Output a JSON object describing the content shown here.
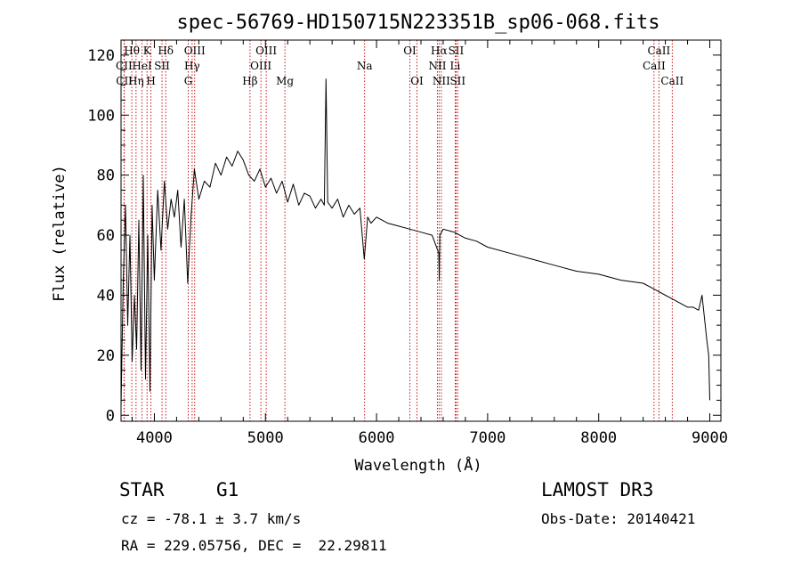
{
  "chart_data": {
    "type": "line",
    "title": "spec-56769-HD150715N223351B_sp06-068.fits",
    "xlabel": "Wavelength (Å)",
    "ylabel": "Flux (relative)",
    "xlim": [
      3700,
      9100
    ],
    "ylim": [
      -2,
      125
    ],
    "xticks": [
      4000,
      5000,
      6000,
      7000,
      8000,
      9000
    ],
    "xtick_labels": [
      "4000",
      "5000",
      "6000",
      "7000",
      "8000",
      "9000"
    ],
    "yticks": [
      0,
      20,
      40,
      60,
      80,
      100,
      120
    ],
    "ytick_labels": [
      "0",
      "20",
      "40",
      "60",
      "80",
      "100",
      "120"
    ],
    "series": [
      {
        "name": "flux",
        "x": [
          3700,
          3720,
          3740,
          3760,
          3780,
          3800,
          3820,
          3840,
          3860,
          3880,
          3900,
          3920,
          3940,
          3960,
          3980,
          4000,
          4030,
          4060,
          4090,
          4120,
          4150,
          4180,
          4210,
          4240,
          4270,
          4300,
          4330,
          4360,
          4400,
          4450,
          4500,
          4550,
          4600,
          4650,
          4700,
          4750,
          4800,
          4850,
          4900,
          4950,
          5000,
          5050,
          5100,
          5150,
          5200,
          5250,
          5300,
          5350,
          5400,
          5450,
          5500,
          5530,
          5545,
          5560,
          5600,
          5650,
          5700,
          5750,
          5800,
          5850,
          5890,
          5920,
          5950,
          6000,
          6100,
          6200,
          6300,
          6400,
          6500,
          6560,
          6565,
          6570,
          6600,
          6700,
          6800,
          6900,
          7000,
          7200,
          7400,
          7600,
          7800,
          8000,
          8200,
          8400,
          8500,
          8550,
          8600,
          8650,
          8700,
          8750,
          8800,
          8850,
          8900,
          8930,
          8950,
          8970,
          8990,
          9000
        ],
        "y": [
          3,
          45,
          70,
          30,
          60,
          18,
          40,
          22,
          65,
          15,
          80,
          12,
          60,
          8,
          70,
          45,
          75,
          55,
          78,
          62,
          72,
          66,
          75,
          56,
          72,
          44,
          66,
          82,
          72,
          78,
          76,
          84,
          80,
          86,
          83,
          88,
          85,
          80,
          78,
          82,
          76,
          79,
          74,
          78,
          71,
          77,
          70,
          74,
          73,
          69,
          72,
          70,
          112,
          71,
          69,
          72,
          66,
          70,
          67,
          69,
          52,
          66,
          64,
          66,
          64,
          63,
          62,
          61,
          60,
          54,
          45,
          60,
          62,
          61,
          59,
          58,
          56,
          54,
          52,
          50,
          48,
          47,
          45,
          44,
          42,
          41,
          40,
          39,
          38,
          37,
          36,
          36,
          35,
          40,
          33,
          26,
          20,
          5
        ]
      }
    ],
    "annotations": [
      {
        "label": "CII",
        "wavelength": 3727,
        "row": 1
      },
      {
        "label": "CII",
        "wavelength": 3729,
        "row": 2
      },
      {
        "label": "Hθ",
        "wavelength": 3797,
        "row": 0
      },
      {
        "label": "Hη",
        "wavelength": 3835,
        "row": 2
      },
      {
        "label": "HeI",
        "wavelength": 3889,
        "row": 1
      },
      {
        "label": "K",
        "wavelength": 3934,
        "row": 0
      },
      {
        "label": "H",
        "wavelength": 3969,
        "row": 2
      },
      {
        "label": "SII",
        "wavelength": 4069,
        "row": 1
      },
      {
        "label": "Hδ",
        "wavelength": 4102,
        "row": 0
      },
      {
        "label": "Hγ",
        "wavelength": 4340,
        "row": 1
      },
      {
        "label": "G",
        "wavelength": 4305,
        "row": 2
      },
      {
        "label": "OIII",
        "wavelength": 4363,
        "row": 0
      },
      {
        "label": "Hβ",
        "wavelength": 4861,
        "row": 2
      },
      {
        "label": "OIII",
        "wavelength": 4959,
        "row": 1
      },
      {
        "label": "OIII",
        "wavelength": 5007,
        "row": 0
      },
      {
        "label": "Mg",
        "wavelength": 5175,
        "row": 2
      },
      {
        "label": "Na",
        "wavelength": 5893,
        "row": 1
      },
      {
        "label": "OI",
        "wavelength": 6300,
        "row": 0
      },
      {
        "label": "OI",
        "wavelength": 6364,
        "row": 2
      },
      {
        "label": "NII",
        "wavelength": 6548,
        "row": 1
      },
      {
        "label": "Hα",
        "wavelength": 6563,
        "row": 0
      },
      {
        "label": "NII",
        "wavelength": 6583,
        "row": 2
      },
      {
        "label": "Li",
        "wavelength": 6708,
        "row": 1
      },
      {
        "label": "SII",
        "wavelength": 6716,
        "row": 0
      },
      {
        "label": "SII",
        "wavelength": 6731,
        "row": 2
      },
      {
        "label": "CaII",
        "wavelength": 8498,
        "row": 1
      },
      {
        "label": "CaII",
        "wavelength": 8542,
        "row": 0
      },
      {
        "label": "CaII",
        "wavelength": 8662,
        "row": 2
      }
    ],
    "line_color": "#000000",
    "marker_color": "#c00000"
  },
  "footer": {
    "object_class": "STAR",
    "subclass": "G1",
    "cz": "cz = -78.1 ± 3.7 km/s",
    "coords": "RA = 229.05756, DEC =  22.29811",
    "survey": "LAMOST DR3",
    "obs_date": "Obs-Date: 20140421"
  }
}
